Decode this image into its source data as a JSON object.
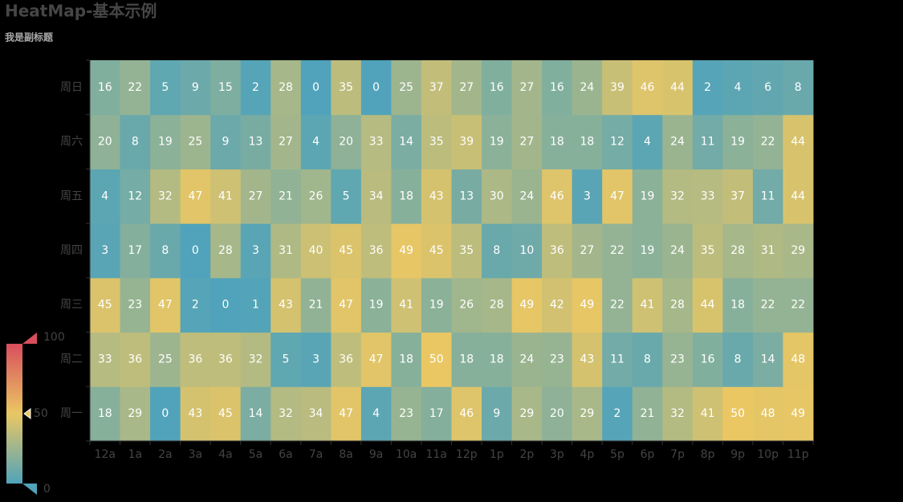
{
  "chart_data": {
    "type": "heatmap",
    "title": "HeatMap-基本示例",
    "subtitle": "我是副标题",
    "x": [
      "12a",
      "1a",
      "2a",
      "3a",
      "4a",
      "5a",
      "6a",
      "7a",
      "8a",
      "9a",
      "10a",
      "11a",
      "12p",
      "1p",
      "2p",
      "3p",
      "4p",
      "5p",
      "6p",
      "7p",
      "8p",
      "9p",
      "10p",
      "11p"
    ],
    "y": [
      "周一",
      "周二",
      "周三",
      "周四",
      "周五",
      "周六",
      "周日"
    ],
    "values": [
      [
        18,
        29,
        0,
        43,
        45,
        14,
        32,
        34,
        47,
        4,
        23,
        17,
        46,
        9,
        29,
        20,
        29,
        2,
        21,
        32,
        41,
        50,
        48,
        49
      ],
      [
        33,
        36,
        25,
        36,
        36,
        32,
        5,
        3,
        36,
        47,
        18,
        50,
        18,
        18,
        24,
        23,
        43,
        11,
        8,
        23,
        16,
        8,
        14,
        48
      ],
      [
        45,
        23,
        47,
        2,
        0,
        1,
        43,
        21,
        47,
        19,
        41,
        19,
        26,
        28,
        49,
        42,
        49,
        22,
        41,
        28,
        44,
        18,
        22,
        22
      ],
      [
        3,
        17,
        8,
        0,
        28,
        3,
        31,
        40,
        45,
        36,
        49,
        45,
        35,
        8,
        10,
        36,
        27,
        22,
        19,
        24,
        35,
        28,
        31,
        29
      ],
      [
        4,
        12,
        32,
        47,
        41,
        27,
        21,
        26,
        5,
        34,
        18,
        43,
        13,
        30,
        24,
        46,
        3,
        47,
        19,
        32,
        33,
        37,
        11,
        44
      ],
      [
        20,
        8,
        19,
        25,
        9,
        13,
        27,
        4,
        20,
        33,
        14,
        35,
        39,
        19,
        27,
        18,
        18,
        12,
        4,
        24,
        11,
        19,
        22,
        44
      ],
      [
        16,
        22,
        5,
        9,
        15,
        2,
        28,
        0,
        35,
        0,
        25,
        37,
        27,
        16,
        27,
        16,
        24,
        39,
        46,
        44,
        2,
        4,
        6,
        8
      ]
    ],
    "visual_map": {
      "min": 0,
      "max": 100,
      "indicator": 50,
      "colors": [
        "#50a3ba",
        "#eac763",
        "#d94e5d"
      ]
    }
  }
}
